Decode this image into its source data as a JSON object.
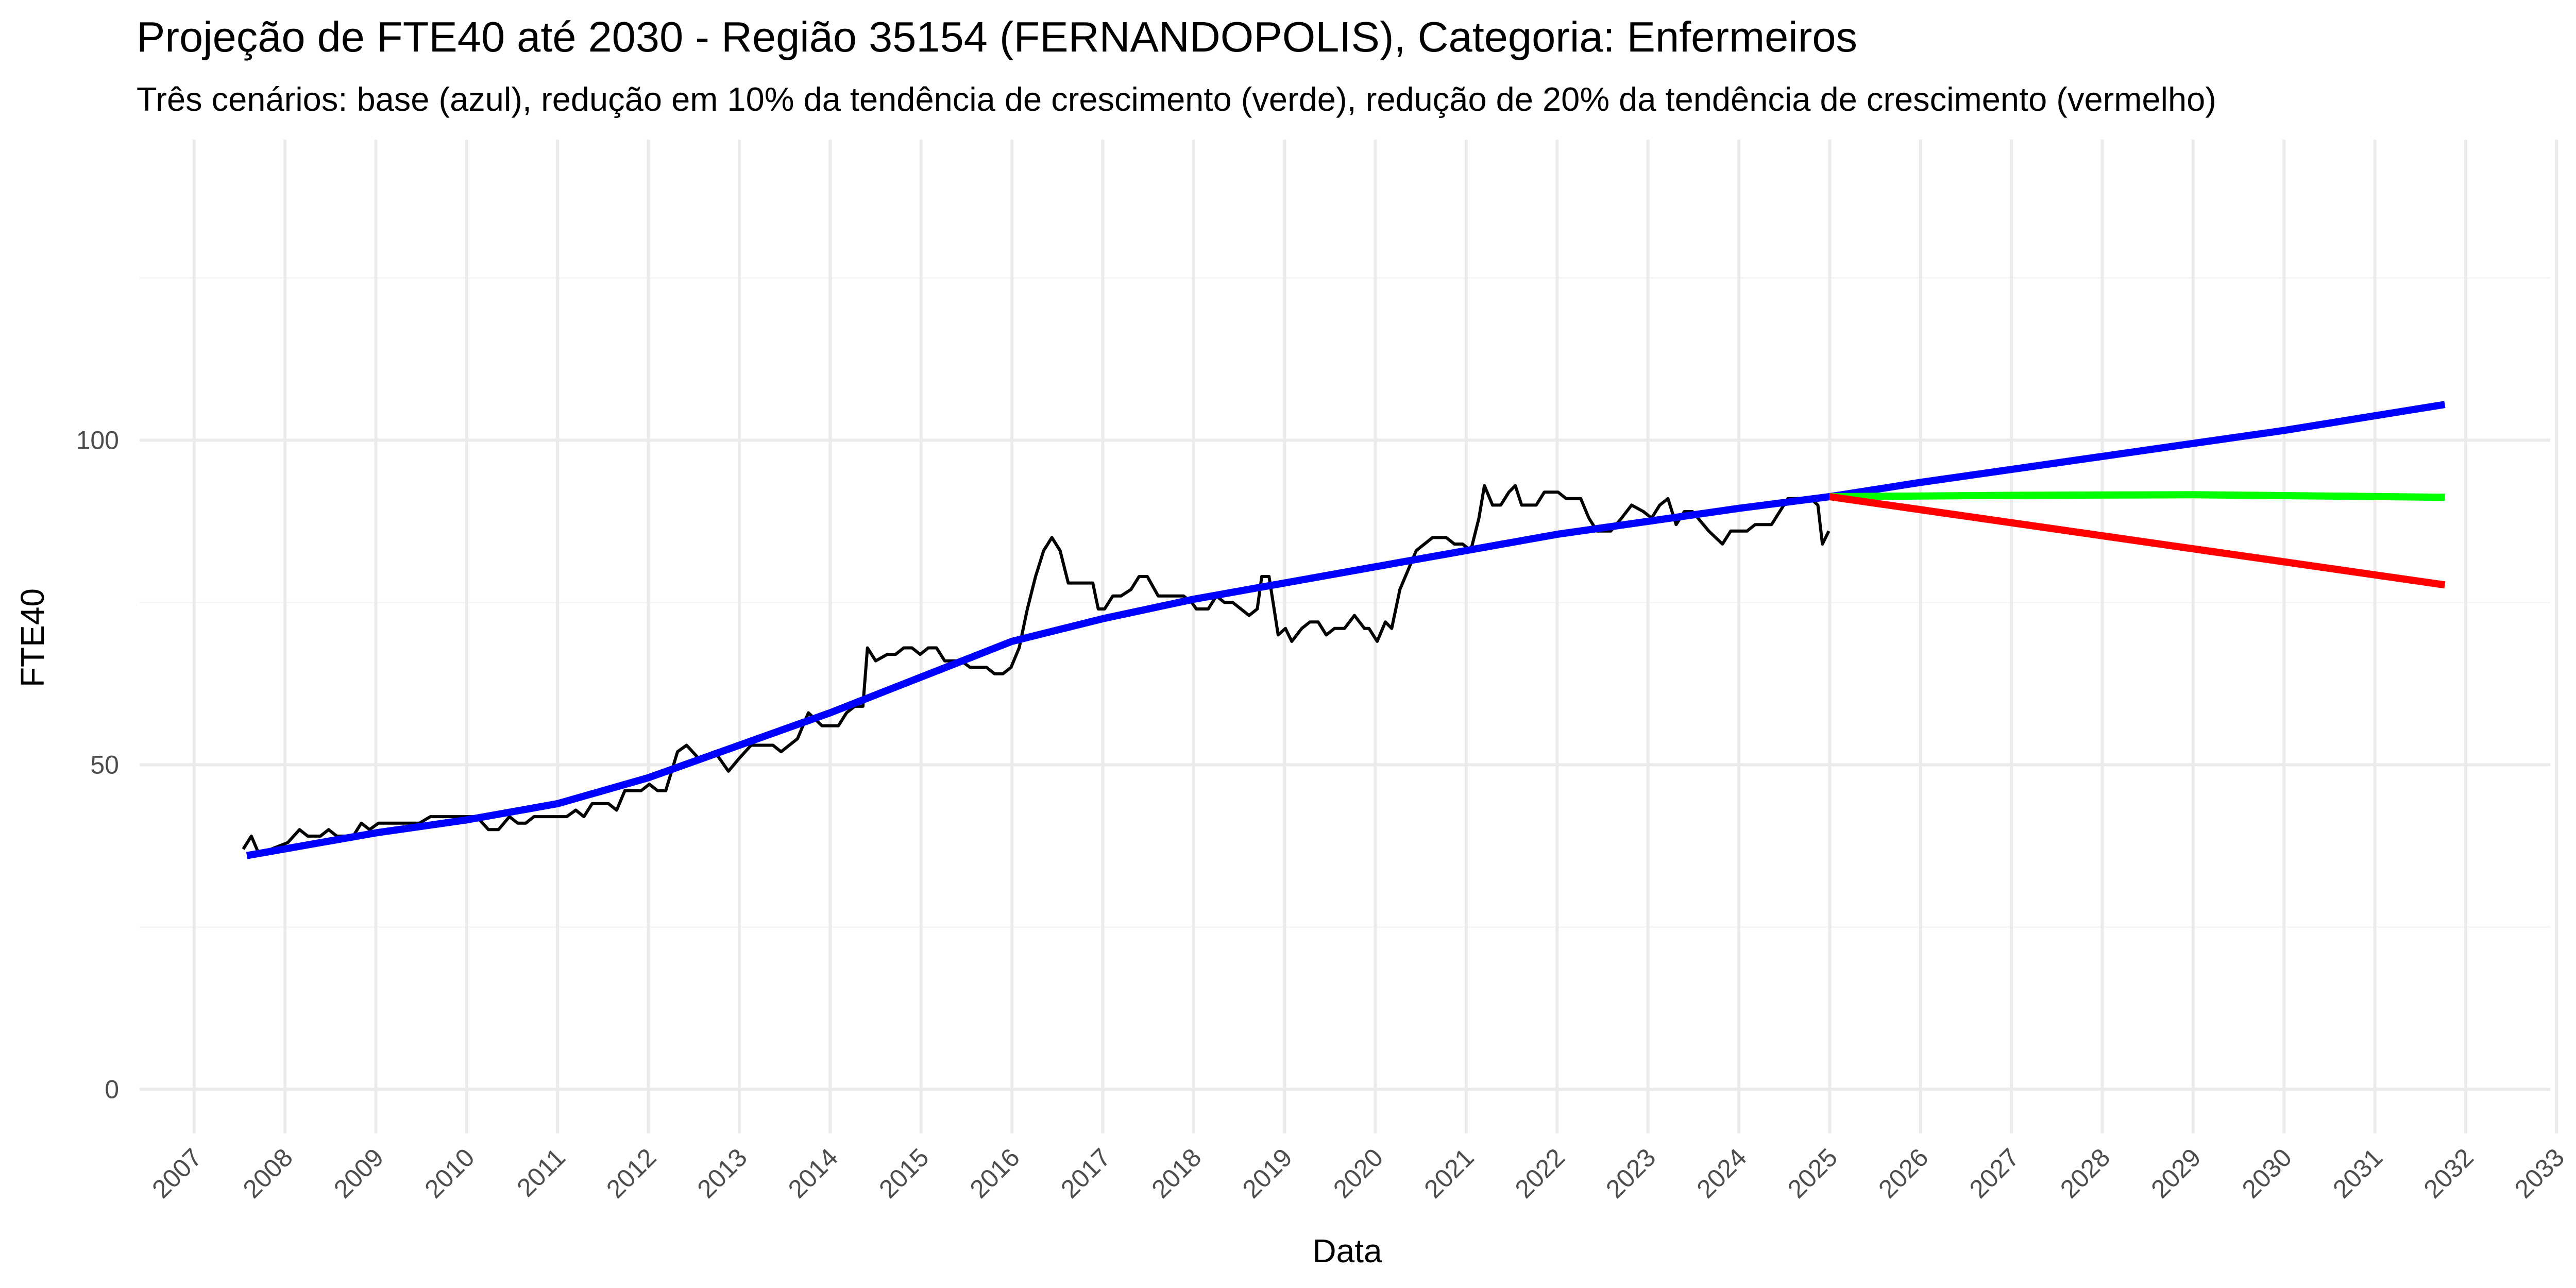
{
  "chart_data": {
    "type": "line",
    "title": "Projeção de FTE40 até 2030 - Região 35154 (FERNANDOPOLIS), Categoria: Enfermeiros",
    "subtitle": "Três cenários: base (azul), redução em 10% da tendência de crescimento (verde), redução de 20% da tendência de crescimento (vermelho)",
    "x_label": "Data",
    "y_label": "FTE40",
    "xlim": [
      2006.4,
      2032.93
    ],
    "ylim": [
      -6.8,
      146.3
    ],
    "xticks": [
      2007,
      2008,
      2009,
      2010,
      2011,
      2012,
      2013,
      2014,
      2015,
      2016,
      2017,
      2018,
      2019,
      2020,
      2021,
      2022,
      2023,
      2024,
      2025,
      2026,
      2027,
      2028,
      2029,
      2030,
      2031,
      2032,
      2033
    ],
    "yticks": [
      0,
      50,
      100
    ],
    "yminor": [
      25,
      75,
      125
    ],
    "grid": true,
    "series": [
      {
        "color": "#000000",
        "x": [
          2007.54,
          2007.63,
          2007.72,
          2007.85,
          2008.03,
          2008.16,
          2008.25,
          2008.39,
          2008.48,
          2008.57,
          2008.75,
          2008.84,
          2008.93,
          2009.03,
          2009.21,
          2009.48,
          2009.6,
          2009.93,
          2010.11,
          2010.24,
          2010.35,
          2010.47,
          2010.56,
          2010.65,
          2010.74,
          2011.1,
          2011.2,
          2011.29,
          2011.38,
          2011.56,
          2011.65,
          2011.74,
          2011.92,
          2012.01,
          2012.1,
          2012.19,
          2012.32,
          2012.42,
          2012.55,
          2012.73,
          2012.88,
          2013.0,
          2013.13,
          2013.37,
          2013.46,
          2013.64,
          2013.76,
          2013.91,
          2014.09,
          2014.18,
          2014.27,
          2014.36,
          2014.41,
          2014.5,
          2014.63,
          2014.72,
          2014.81,
          2014.9,
          2014.99,
          2015.08,
          2015.17,
          2015.26,
          2015.44,
          2015.54,
          2015.72,
          2015.81,
          2015.9,
          2015.99,
          2016.08,
          2016.17,
          2016.26,
          2016.35,
          2016.44,
          2016.53,
          2016.62,
          2016.8,
          2016.89,
          2016.95,
          2017.02,
          2017.11,
          2017.2,
          2017.31,
          2017.4,
          2017.49,
          2017.61,
          2017.8,
          2017.89,
          2017.98,
          2018.03,
          2018.16,
          2018.25,
          2018.34,
          2018.43,
          2018.52,
          2018.61,
          2018.7,
          2018.75,
          2018.83,
          2018.93,
          2019.01,
          2019.08,
          2019.19,
          2019.28,
          2019.37,
          2019.46,
          2019.55,
          2019.66,
          2019.77,
          2019.88,
          2019.93,
          2020.02,
          2020.11,
          2020.18,
          2020.27,
          2020.36,
          2020.45,
          2020.54,
          2020.63,
          2020.78,
          2020.87,
          2020.96,
          2021.05,
          2021.14,
          2021.2,
          2021.29,
          2021.38,
          2021.47,
          2021.54,
          2021.61,
          2021.77,
          2021.86,
          2022.01,
          2022.1,
          2022.26,
          2022.35,
          2022.44,
          2022.59,
          2022.71,
          2022.82,
          2022.95,
          2023.04,
          2023.13,
          2023.22,
          2023.31,
          2023.4,
          2023.49,
          2023.67,
          2023.82,
          2023.91,
          2024.09,
          2024.18,
          2024.36,
          2024.45,
          2024.54,
          2024.67,
          2024.79,
          2024.87,
          2024.92,
          2024.99
        ],
        "values": [
          37,
          39,
          36,
          37,
          38,
          40,
          39,
          39,
          40,
          39,
          39,
          41,
          40,
          41,
          41,
          41,
          42,
          42,
          42,
          40,
          40,
          42,
          41,
          41,
          42,
          42,
          43,
          42,
          44,
          44,
          43,
          46,
          46,
          47,
          46,
          46,
          52,
          53,
          51,
          52,
          49,
          51,
          53,
          53,
          52,
          54,
          58,
          56,
          56,
          58,
          59,
          59,
          68,
          66,
          67,
          67,
          68,
          68,
          67,
          68,
          68,
          66,
          66,
          65,
          65,
          64,
          64,
          65,
          68,
          74,
          79,
          83,
          85,
          83,
          78,
          78,
          78,
          74,
          74,
          76,
          76,
          77,
          79,
          79,
          76,
          76,
          76,
          75,
          74,
          74,
          76,
          75,
          75,
          74,
          73,
          74,
          79,
          79,
          70,
          71,
          69,
          71,
          72,
          72,
          70,
          71,
          71,
          73,
          71,
          71,
          69,
          72,
          71,
          77,
          80,
          83,
          84,
          85,
          85,
          84,
          84,
          83,
          88,
          93,
          90,
          90,
          92,
          93,
          90,
          90,
          92,
          92,
          91,
          91,
          88,
          86,
          86,
          88,
          90,
          89,
          88,
          90,
          91,
          87,
          89,
          89,
          86,
          84,
          86,
          86,
          87,
          87,
          89,
          91,
          91,
          91,
          90,
          84,
          86
        ]
      },
      {
        "color": "#0000ff",
        "x": [
          2007.58,
          2009,
          2010,
          2011,
          2012,
          2013,
          2014,
          2015,
          2016,
          2017,
          2018,
          2019,
          2020,
          2021,
          2022,
          2023,
          2024,
          2025,
          2026,
          2028,
          2030,
          2031.77
        ],
        "values": [
          36,
          39.5,
          41.5,
          44,
          48,
          53,
          58,
          63.5,
          69,
          72.5,
          75.5,
          78,
          80.5,
          83,
          85.5,
          87.5,
          89.5,
          91.3,
          93.5,
          97.5,
          101.5,
          105.5
        ]
      },
      {
        "color": "#00ff00",
        "x": [
          2025,
          2027,
          2029,
          2031.77
        ],
        "values": [
          91.3,
          91.5,
          91.6,
          91.2
        ]
      },
      {
        "color": "#ff0000",
        "x": [
          2025,
          2031.77
        ],
        "values": [
          91.3,
          77.7
        ]
      }
    ]
  }
}
